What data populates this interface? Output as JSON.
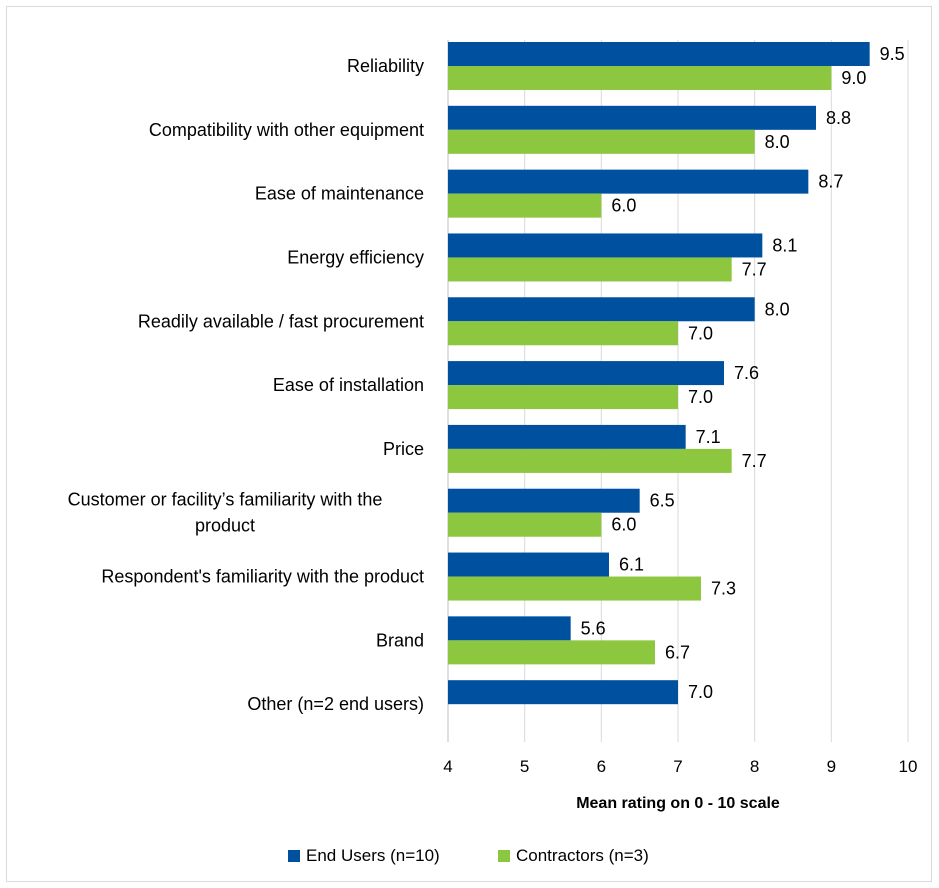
{
  "chart_data": {
    "type": "bar",
    "orientation": "horizontal",
    "title": "",
    "xlabel": "Mean rating on 0 - 10 scale",
    "ylabel": "",
    "xlim": [
      4,
      10
    ],
    "ticks": [
      "4",
      "5",
      "6",
      "7",
      "8",
      "9",
      "10"
    ],
    "gridlines": true,
    "legend_position": "bottom",
    "categories": [
      "Reliability",
      "Compatibility with other equipment",
      "Ease of maintenance",
      "Energy efficiency",
      "Readily available / fast procurement",
      "Ease of installation",
      "Price",
      "Customer or facility’s familiarity with the product",
      "Respondent's familiarity with the product",
      "Brand",
      "Other (n=2 end users)"
    ],
    "series": [
      {
        "name": "End Users (n=10)",
        "color": "#0050a0",
        "values": [
          9.5,
          8.8,
          8.7,
          8.1,
          8.0,
          7.6,
          7.1,
          6.5,
          6.1,
          5.6,
          7.0
        ],
        "labels": [
          "9.5",
          "8.8",
          "8.7",
          "8.1",
          "8.0",
          "7.6",
          "7.1",
          "6.5",
          "6.1",
          "5.6",
          "7.0"
        ]
      },
      {
        "name": "Contractors (n=3)",
        "color": "#8dc63f",
        "values": [
          9.0,
          8.0,
          6.0,
          7.7,
          7.0,
          7.0,
          7.7,
          6.0,
          7.3,
          6.7,
          null
        ],
        "labels": [
          "9.0",
          "8.0",
          "6.0",
          "7.7",
          "7.0",
          "7.0",
          "7.7",
          "6.0",
          "7.3",
          "6.7",
          ""
        ]
      }
    ]
  }
}
